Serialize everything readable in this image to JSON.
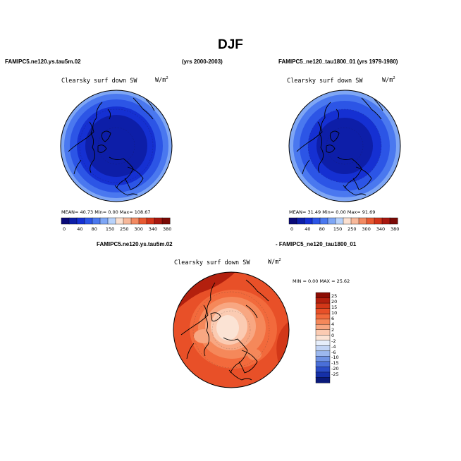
{
  "page": {
    "title": "DJF",
    "left_case": "FAMIPC5.ne120.ys.tau5m.02",
    "left_years": "(yrs 2000-2003)",
    "right_case": "FAMIPC5_ne120_tau1800_01 (yrs 1979-1980)"
  },
  "panel_left": {
    "variable": "Clearsky surf down SW",
    "units_base": "W/m",
    "units_exp": "2",
    "stats": "MEAN=  40.73  Min=   0.00  Max= 108.67"
  },
  "panel_right": {
    "variable": "Clearsky surf down SW",
    "units_base": "W/m",
    "units_exp": "2",
    "stats": "MEAN=  31.49  Min=   0.00  Max=  91.69"
  },
  "colorbar_abs": {
    "labels": [
      "0",
      "40",
      "80",
      "150",
      "250",
      "300",
      "340",
      "380"
    ],
    "colors": [
      "#0a0a78",
      "#0d1ea8",
      "#1530d2",
      "#2c55e6",
      "#4a78ef",
      "#7ea6f5",
      "#b8d2fa",
      "#fbe0d0",
      "#f7b89a",
      "#f28a62",
      "#e85a32",
      "#d2341a",
      "#a81810",
      "#7a0a06"
    ]
  },
  "diff": {
    "header_left": "FAMIPC5.ne120.ys.tau5m.02",
    "header_right": "- FAMIPC5_ne120_tau1800_01",
    "variable": "Clearsky surf down SW",
    "units_base": "W/m",
    "units_exp": "2",
    "stats": "MIN =   0.00 MAX =  25.62",
    "colorbar_labels": [
      "25",
      "20",
      "15",
      "10",
      "6",
      "4",
      "2",
      "0",
      "-2",
      "-4",
      "-6",
      "-10",
      "-15",
      "-20",
      "-25"
    ],
    "colorbar_colors": [
      "#8c0d04",
      "#b3200e",
      "#d23718",
      "#e85028",
      "#f26a3c",
      "#f5885a",
      "#f8a782",
      "#fbcbb2",
      "#fbe3d4",
      "#e6eefb",
      "#c2d4f5",
      "#9cb8ee",
      "#6f92e3",
      "#4a6fd8",
      "#2a4cc6",
      "#1530a8",
      "#0a1a7a"
    ]
  }
}
